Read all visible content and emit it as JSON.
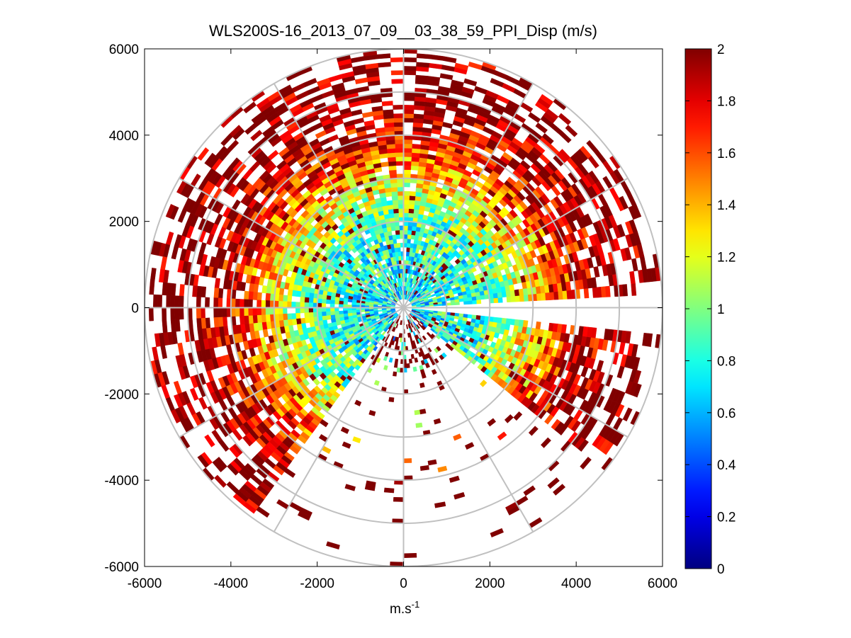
{
  "chart_data": {
    "type": "heatmap",
    "subtype": "ppi-polar",
    "title": "WLS200S-16_2013_07_09__03_38_59_PPI_Disp (m/s)",
    "xlabel_main": "m.s",
    "xlabel_exp": "-1",
    "ylabel": "",
    "xlim": [
      -6000,
      6000
    ],
    "ylim": [
      -6000,
      6000
    ],
    "x_ticks": [
      -6000,
      -4000,
      -2000,
      0,
      2000,
      4000,
      6000
    ],
    "y_ticks": [
      -6000,
      -4000,
      -2000,
      0,
      2000,
      4000,
      6000
    ],
    "x_tick_labels": [
      "-6000",
      "-4000",
      "-2000",
      "0",
      "2000",
      "4000",
      "6000"
    ],
    "y_tick_labels": [
      "-6000",
      "-4000",
      "-2000",
      "0",
      "2000",
      "4000",
      "6000"
    ],
    "range_rings_m": [
      1000,
      2000,
      3000,
      4000,
      5000,
      6000
    ],
    "spokes_deg_math": [
      0,
      30,
      60,
      90,
      120,
      150,
      180,
      210,
      240,
      270,
      300,
      330
    ],
    "colorbar": {
      "colormap": "jet",
      "clim": [
        0,
        2
      ],
      "ticks": [
        0,
        0.2,
        0.4,
        0.6,
        0.8,
        1,
        1.2,
        1.4,
        1.6,
        1.8,
        2
      ],
      "tick_labels": [
        "0",
        "0.2",
        "0.4",
        "0.6",
        "0.8",
        "1",
        "1.2",
        "1.4",
        "1.6",
        "1.8",
        "2"
      ]
    },
    "scan": {
      "range_gates_m": [
        200,
        6000
      ],
      "gate_spacing_m": 100,
      "beam_width_deg": 3,
      "blanked_sectors_deg_math": [
        [
          -6,
          4
        ]
      ],
      "sparse_sector_deg_math": [
        -125,
        -40
      ],
      "value_profile": [
        {
          "range_m": 0,
          "dispersion_ms": 0.7
        },
        {
          "range_m": 2000,
          "dispersion_ms": 0.9
        },
        {
          "range_m": 3000,
          "dispersion_ms": 1.3
        },
        {
          "range_m": 4000,
          "dispersion_ms": 1.8
        },
        {
          "range_m": 5000,
          "dispersion_ms": 2.0
        },
        {
          "range_m": 6000,
          "dispersion_ms": 2.0
        }
      ]
    }
  }
}
